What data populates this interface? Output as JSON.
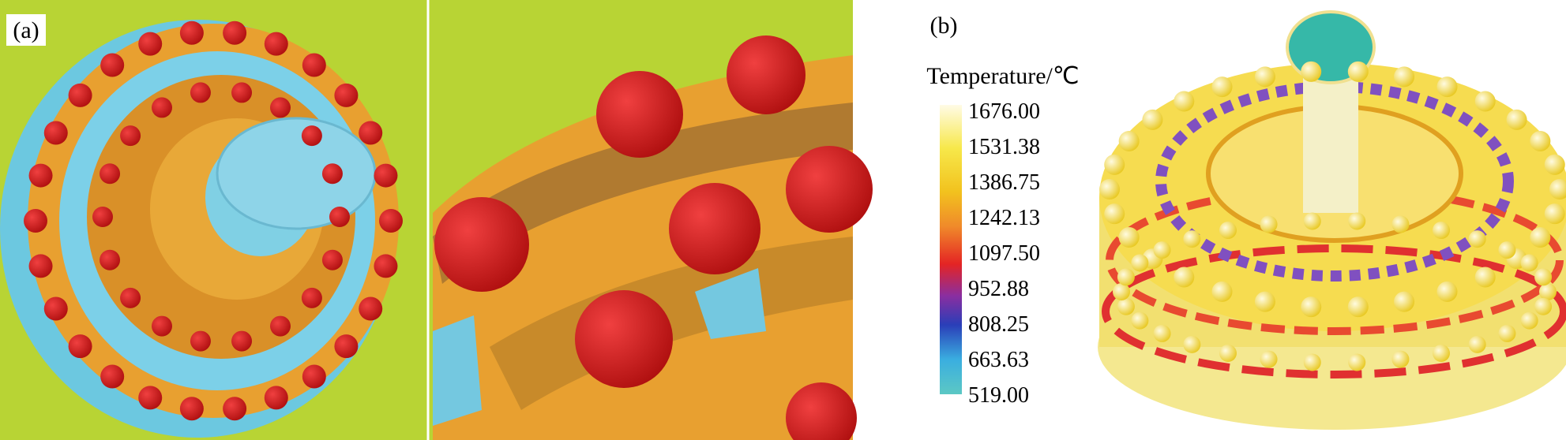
{
  "panels": [
    {
      "label": "(a)"
    },
    {
      "label": "(b)"
    }
  ],
  "legend": {
    "title": "Temperature/℃",
    "labels": [
      "1676.00",
      "1531.38",
      "1386.75",
      "1242.13",
      "1097.50",
      "952.88",
      "808.25",
      "663.63",
      "519.00"
    ]
  }
}
